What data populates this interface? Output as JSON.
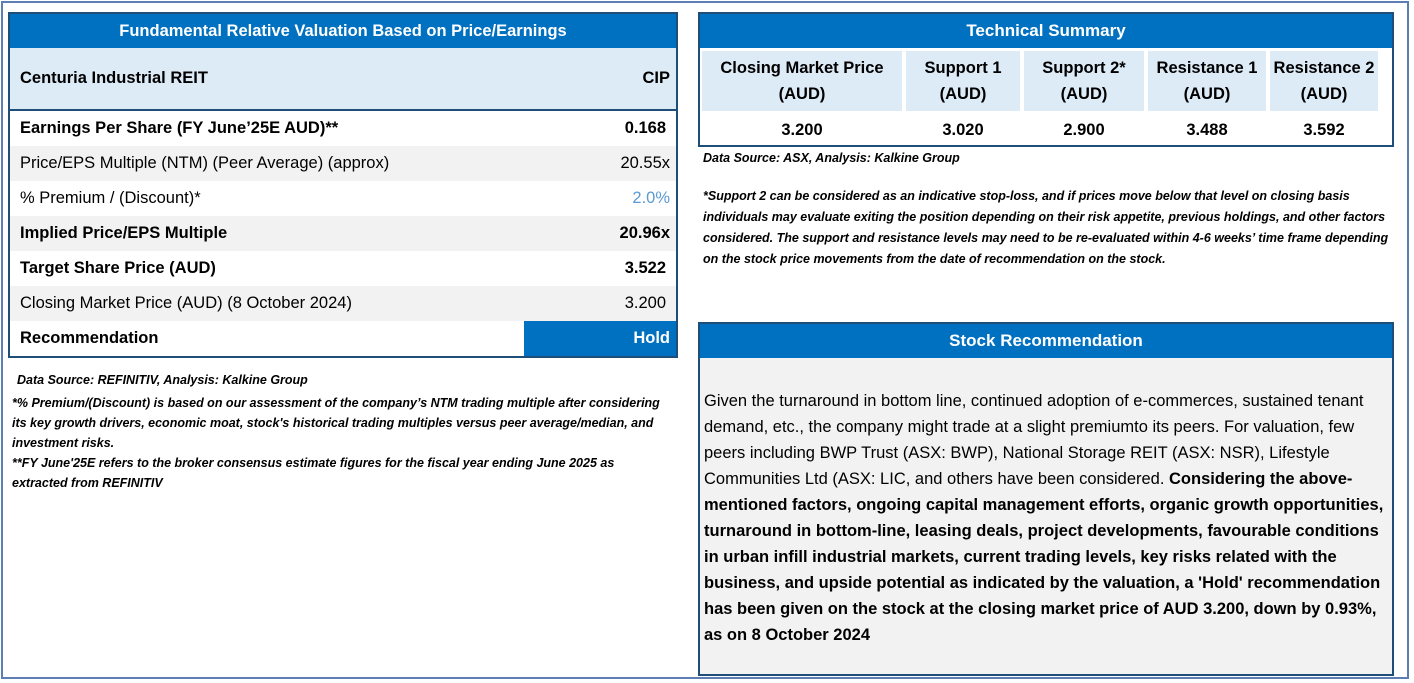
{
  "valuation": {
    "title": "Fundamental Relative Valuation Based on Price/Earnings",
    "company": "Centuria Industrial REIT",
    "ticker": "CIP",
    "rows": [
      {
        "label": "Earnings Per Share (FY June’25E AUD)**",
        "value": "0.168"
      },
      {
        "label": "Price/EPS Multiple (NTM) (Peer Average) (approx)",
        "value": "20.55x"
      },
      {
        "label": "% Premium / (Discount)*",
        "value": "2.0%"
      },
      {
        "label": "Implied Price/EPS Multiple",
        "value": "20.96x"
      },
      {
        "label": "Target Share Price (AUD)",
        "value": "3.522"
      },
      {
        "label": "Closing Market Price (AUD) (8 October 2024)",
        "value": "3.200"
      },
      {
        "label": "Recommendation",
        "value": "Hold"
      }
    ],
    "source": "Data Source: REFINITIV, Analysis: Kalkine Group",
    "note1": "*% Premium/(Discount) is based on our assessment of the company’s NTM trading multiple after considering its key growth drivers, economic moat, stock's historical trading multiples versus peer average/median, and investment risks.",
    "note2": "**FY June'25E refers to the broker consensus estimate figures for the fiscal year ending June 2025 as extracted from REFINITIV"
  },
  "technical": {
    "title": "Technical Summary",
    "columns": [
      {
        "header": "Closing Market Price (AUD)",
        "value": "3.200"
      },
      {
        "header": "Support 1 (AUD)",
        "value": "3.020"
      },
      {
        "header": "Support 2* (AUD)",
        "value": "2.900"
      },
      {
        "header": "Resistance 1 (AUD)",
        "value": "3.488"
      },
      {
        "header": "Resistance 2 (AUD)",
        "value": "3.592"
      }
    ],
    "source": "Data Source: ASX, Analysis: Kalkine Group",
    "disclaimer": "*Support 2 can be considered as an indicative stop-loss, and if prices move below that level on closing basis individuals may evaluate exiting the position depending on their risk appetite, previous holdings, and other factors considered. The support and resistance levels may need to be re-evaluated within 4-6 weeks’ time frame depending on the stock price movements from the date of recommendation on the stock."
  },
  "recommendation": {
    "title": "Stock Recommendation",
    "text_regular": "Given the turnaround in bottom line, continued adoption of e-commerces, sustained tenant demand, etc., the company might trade at a slight premiumto its peers. For valuation, few peers including BWP Trust (ASX: BWP), National Storage REIT (ASX: NSR), Lifestyle Communities Ltd (ASX: LIC, and others have been considered.",
    "text_bold": "Considering the above-mentioned factors, ongoing capital management efforts, organic growth opportunities, turnaround in bottom-line, leasing deals, project developments, favourable conditions in urban infill industrial markets, current trading levels, key risks related with the business, and upside potential as indicated by the valuation, a 'Hold' recommendation has been given on the stock at the closing market price of AUD 3.200, down by 0.93%, as on 8 October 2024"
  },
  "colors": {
    "header_blue": "#0070c0",
    "light_blue": "#ddebf7",
    "grey": "#f2f2f2",
    "premium_blue": "#5b9bd5"
  }
}
